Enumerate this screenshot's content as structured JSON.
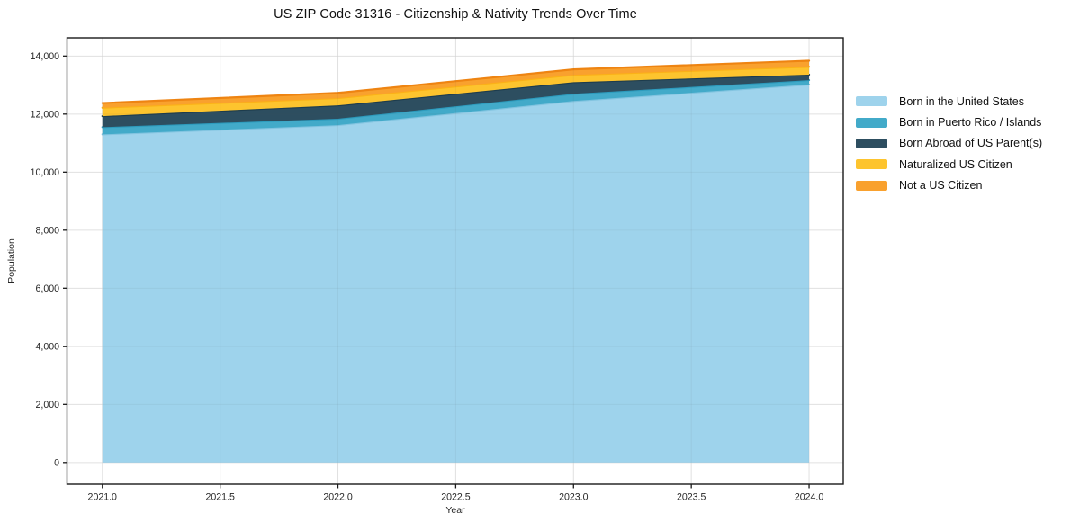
{
  "chart": {
    "title": "US ZIP Code 31316 - Citizenship & Nativity Trends Over Time",
    "xlabel": "Year",
    "ylabel": "Population"
  },
  "chart_data": {
    "type": "area",
    "stacked": true,
    "title": "US ZIP Code 31316 - Citizenship & Nativity Trends Over Time",
    "xlabel": "Year",
    "ylabel": "Population",
    "x": [
      2021,
      2022,
      2023,
      2024
    ],
    "series": [
      {
        "name": "Born in the United States",
        "values": [
          11300,
          11620,
          12450,
          13020
        ],
        "fill": "#9ed3ec",
        "line": "#82c4e0"
      },
      {
        "name": "Born in Puerto Rico / Islands",
        "values": [
          250,
          220,
          250,
          150
        ],
        "fill": "#42aac9",
        "line": "#2d9bbd"
      },
      {
        "name": "Born Abroad of US Parent(s)",
        "values": [
          380,
          460,
          400,
          190
        ],
        "fill": "#2d4e60",
        "line": "#1d3c4d"
      },
      {
        "name": "Naturalized US Citizen",
        "values": [
          290,
          250,
          250,
          270
        ],
        "fill": "#fdc42e",
        "line": "#fbb117"
      },
      {
        "name": "Not a US Citizen",
        "values": [
          160,
          180,
          190,
          210
        ],
        "fill": "#f9a12e",
        "line": "#ee8412"
      }
    ],
    "stack_totals": [
      12380,
      12730,
      13540,
      13840
    ],
    "x_ticks": [
      2021.0,
      2021.5,
      2022.0,
      2022.5,
      2023.0,
      2023.5,
      2024.0
    ],
    "x_tick_labels": [
      "2021.0",
      "2021.5",
      "2022.0",
      "2022.5",
      "2023.0",
      "2023.5",
      "2024.0"
    ],
    "y_ticks": [
      0,
      2000,
      4000,
      6000,
      8000,
      10000,
      12000,
      14000
    ],
    "y_tick_labels": [
      "0",
      "2,000",
      "4,000",
      "6,000",
      "8,000",
      "10,000",
      "12,000",
      "14,000"
    ],
    "xlim": [
      2020.85,
      2024.145
    ],
    "ylim": [
      -750,
      14630
    ],
    "grid": true,
    "legend_position": "right-outside",
    "axis_color": "#1a1a1a",
    "grid_color": "#ececec",
    "tick_label_color": "#262626"
  }
}
